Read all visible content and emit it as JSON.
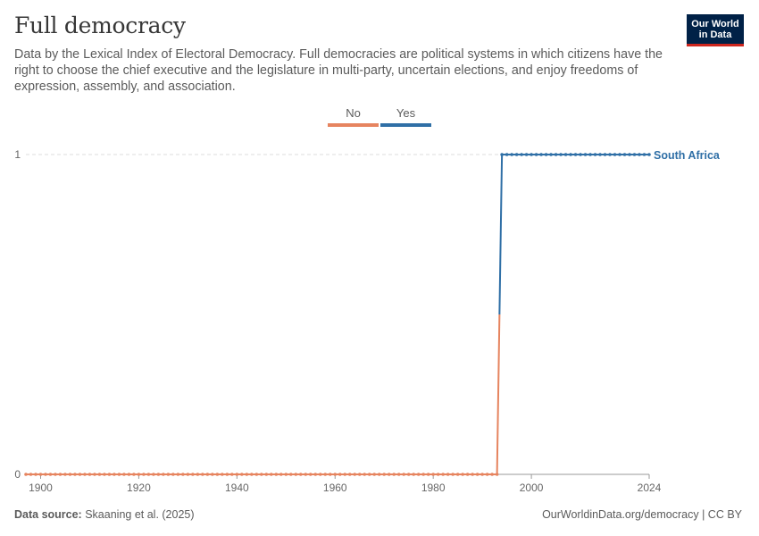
{
  "title": "Full democracy",
  "subtitle": "Data by the Lexical Index of Electoral Democracy. Full democracies are political systems in which citizens have the right to choose the chief executive and the legislature in multi-party, uncertain elections, and enjoy freedoms of expression, assembly, and association.",
  "logo": {
    "line1": "Our World",
    "line2": "in Data"
  },
  "legend": [
    {
      "label": "No",
      "color": "#e6845f"
    },
    {
      "label": "Yes",
      "color": "#2f6fa6"
    }
  ],
  "footer": {
    "source_label": "Data source:",
    "source_text": "Skaaning et al. (2025)",
    "link_text": "OurWorldinData.org/democracy | CC BY"
  },
  "chart_data": {
    "type": "line",
    "xlim": [
      1897,
      2024
    ],
    "ylim": [
      0,
      1
    ],
    "x_ticks": [
      1900,
      1920,
      1940,
      1960,
      1980,
      2000,
      2024
    ],
    "y_ticks": [
      0,
      1
    ],
    "grid": "horizontal dashed",
    "series": [
      {
        "name": "South Africa",
        "label_color": "#2f6fa6",
        "segments": [
          {
            "category": "No",
            "color": "#e6845f",
            "x_start": 1897,
            "x_end": 1993,
            "y": 0
          },
          {
            "category": "Yes",
            "color": "#2f6fa6",
            "x_start": 1994,
            "x_end": 2024,
            "y": 1
          }
        ]
      }
    ]
  }
}
